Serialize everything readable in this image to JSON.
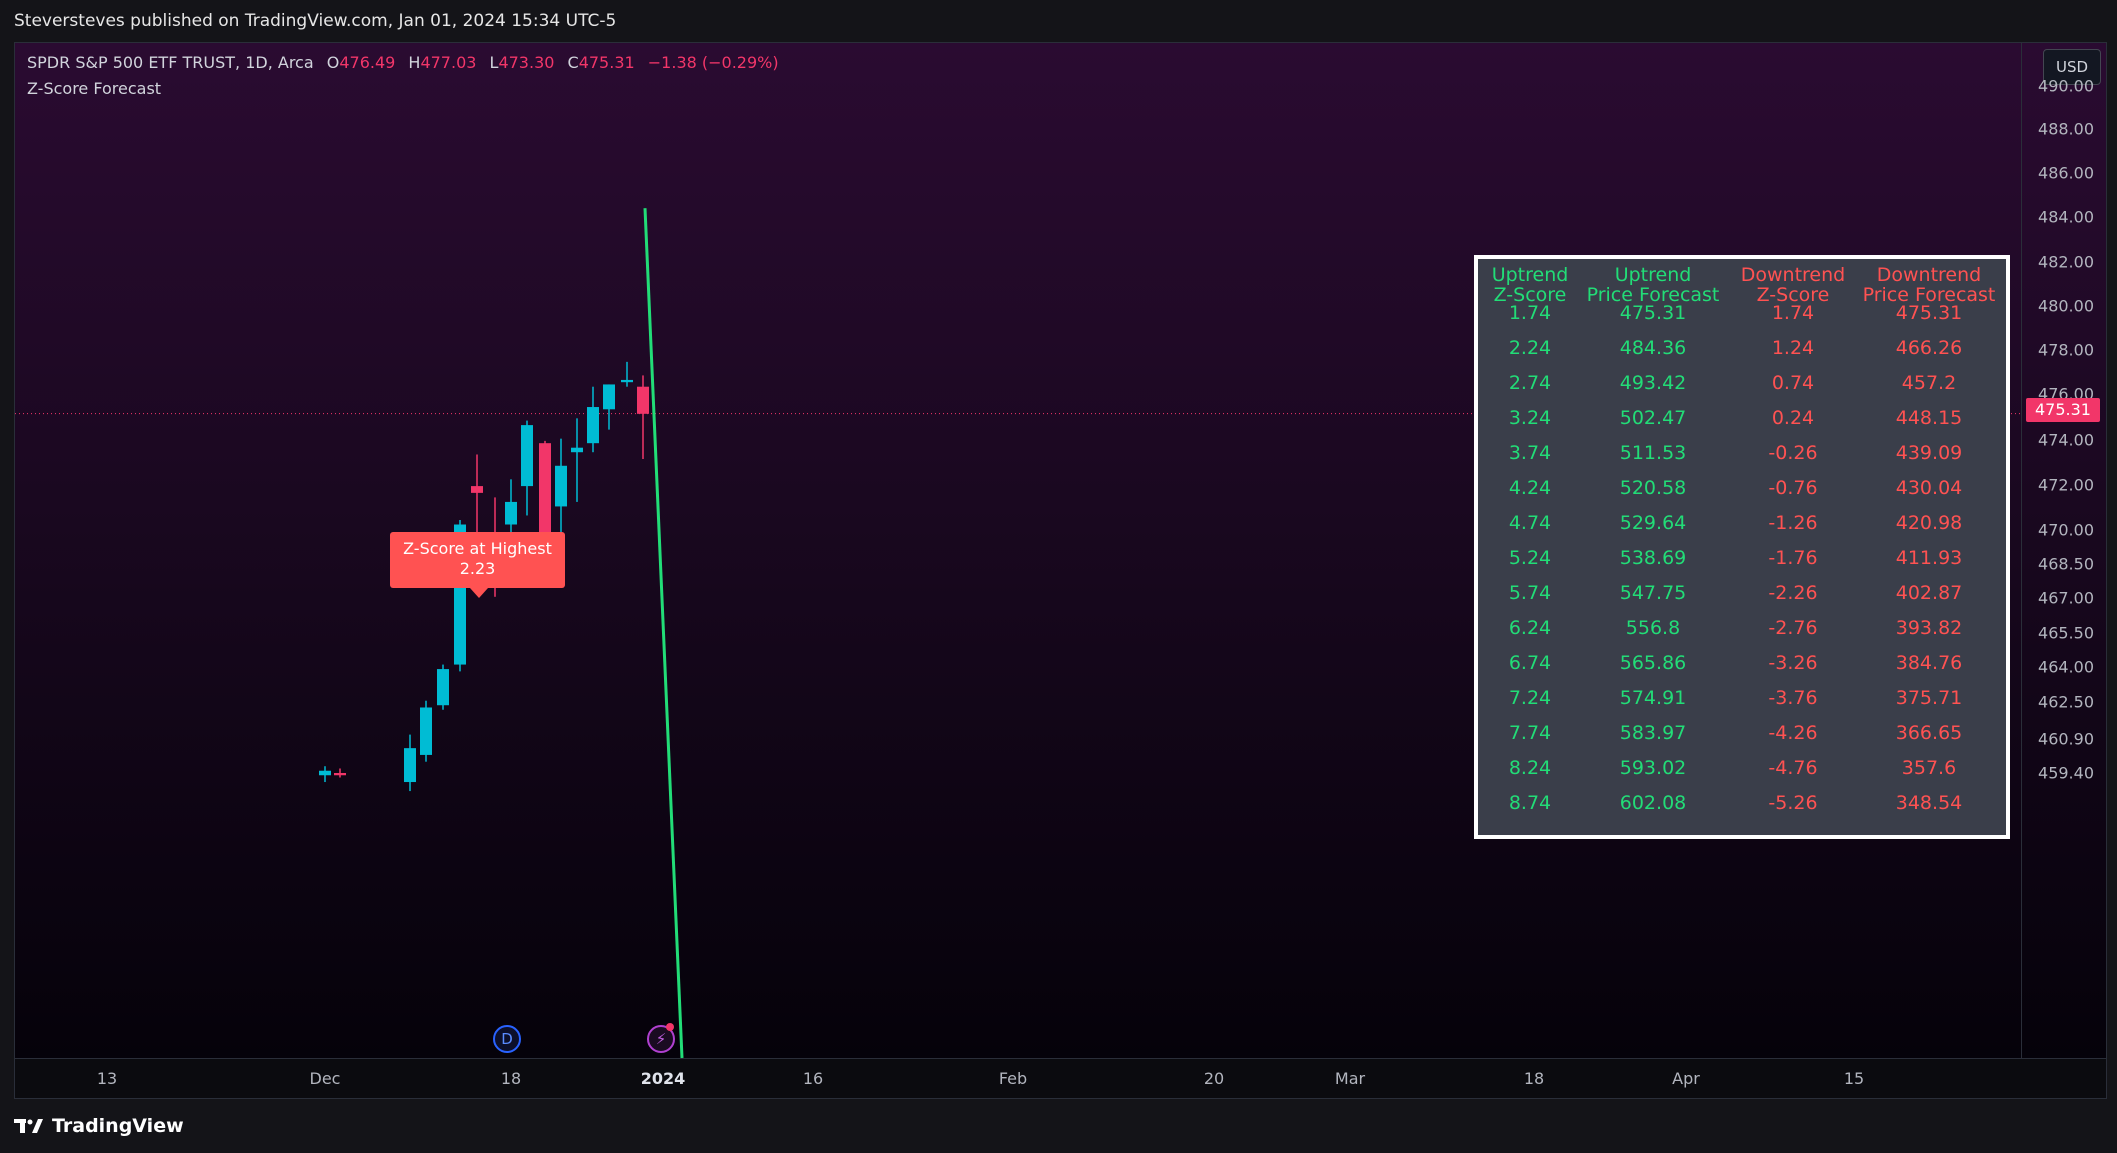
{
  "header": {
    "published_text": "Steversteves published on TradingView.com, Jan 01, 2024 15:34 UTC-5"
  },
  "symbol": {
    "name": "SPDR S&P 500 ETF TRUST, 1D, Arca",
    "open_label": "O",
    "open": "476.49",
    "high_label": "H",
    "high": "477.03",
    "low_label": "L",
    "low": "473.30",
    "close_label": "C",
    "close": "475.31",
    "change": "−1.38 (−0.29%)"
  },
  "indicator": {
    "name": "Z-Score Forecast"
  },
  "currency_button": "USD",
  "price_axis": {
    "ticks": [
      "490.00",
      "488.00",
      "486.00",
      "484.00",
      "482.00",
      "480.00",
      "478.00",
      "476.00",
      "474.00",
      "472.00",
      "470.00",
      "468.50",
      "467.00",
      "465.50",
      "464.00",
      "462.50",
      "460.90",
      "459.40"
    ],
    "current_price": "475.31"
  },
  "time_axis": {
    "ticks": [
      {
        "label": "13",
        "bold": false
      },
      {
        "label": "Dec",
        "bold": false
      },
      {
        "label": "18",
        "bold": false
      },
      {
        "label": "2024",
        "bold": true
      },
      {
        "label": "16",
        "bold": false
      },
      {
        "label": "Feb",
        "bold": false
      },
      {
        "label": "20",
        "bold": false
      },
      {
        "label": "Mar",
        "bold": false
      },
      {
        "label": "18",
        "bold": false
      },
      {
        "label": "Apr",
        "bold": false
      },
      {
        "label": "15",
        "bold": false
      }
    ]
  },
  "zscore_marker": {
    "line1": "Z-Score at Highest",
    "line2": "2.23"
  },
  "events": {
    "dividend": "D"
  },
  "forecast_table": {
    "headers": [
      {
        "l1": "Uptrend",
        "l2": "Z-Score",
        "color": "green"
      },
      {
        "l1": "Uptrend",
        "l2": "Price Forecast",
        "color": "green"
      },
      {
        "l1": "Downtrend",
        "l2": "Z-Score",
        "color": "red"
      },
      {
        "l1": "Downtrend",
        "l2": "Price Forecast",
        "color": "red"
      }
    ],
    "rows": [
      [
        "1.74",
        "475.31",
        "1.74",
        "475.31"
      ],
      [
        "2.24",
        "484.36",
        "1.24",
        "466.26"
      ],
      [
        "2.74",
        "493.42",
        "0.74",
        "457.2"
      ],
      [
        "3.24",
        "502.47",
        "0.24",
        "448.15"
      ],
      [
        "3.74",
        "511.53",
        "-0.26",
        "439.09"
      ],
      [
        "4.24",
        "520.58",
        "-0.76",
        "430.04"
      ],
      [
        "4.74",
        "529.64",
        "-1.26",
        "420.98"
      ],
      [
        "5.24",
        "538.69",
        "-1.76",
        "411.93"
      ],
      [
        "5.74",
        "547.75",
        "-2.26",
        "402.87"
      ],
      [
        "6.24",
        "556.8",
        "-2.76",
        "393.82"
      ],
      [
        "6.74",
        "565.86",
        "-3.26",
        "384.76"
      ],
      [
        "7.24",
        "574.91",
        "-3.76",
        "375.71"
      ],
      [
        "7.74",
        "583.97",
        "-4.26",
        "366.65"
      ],
      [
        "8.24",
        "593.02",
        "-4.76",
        "357.6"
      ],
      [
        "8.74",
        "602.08",
        "-5.26",
        "348.54"
      ]
    ]
  },
  "chart_data": {
    "type": "candlestick",
    "up_color": "#00bcd4",
    "down_color": "#f23669",
    "forecast_line_color": "#22dd77",
    "candles": [
      {
        "o": 459.3,
        "h": 459.7,
        "l": 459.0,
        "c": 459.5
      },
      {
        "o": 459.4,
        "h": 459.6,
        "l": 459.2,
        "c": 459.3
      },
      {
        "o": 459.0,
        "h": 461.1,
        "l": 458.6,
        "c": 460.5
      },
      {
        "o": 460.2,
        "h": 462.6,
        "l": 459.9,
        "c": 462.3
      },
      {
        "o": 462.4,
        "h": 464.2,
        "l": 462.2,
        "c": 464.0
      },
      {
        "o": 464.2,
        "h": 470.6,
        "l": 463.9,
        "c": 470.4
      },
      {
        "o": 472.1,
        "h": 473.5,
        "l": 469.8,
        "c": 471.8
      },
      {
        "o": 469.6,
        "h": 471.6,
        "l": 467.2,
        "c": 469.5
      },
      {
        "o": 470.4,
        "h": 472.4,
        "l": 469.9,
        "c": 471.4
      },
      {
        "o": 472.1,
        "h": 475.0,
        "l": 470.8,
        "c": 474.8
      },
      {
        "o": 474.0,
        "h": 474.1,
        "l": 467.9,
        "c": 468.3
      },
      {
        "o": 471.2,
        "h": 474.2,
        "l": 468.8,
        "c": 473.0
      },
      {
        "o": 473.6,
        "h": 475.1,
        "l": 471.4,
        "c": 473.8
      },
      {
        "o": 474.0,
        "h": 476.5,
        "l": 473.6,
        "c": 475.6
      },
      {
        "o": 475.5,
        "h": 476.6,
        "l": 474.6,
        "c": 476.6
      },
      {
        "o": 476.7,
        "h": 477.6,
        "l": 476.5,
        "c": 476.8
      },
      {
        "o": 476.5,
        "h": 477.0,
        "l": 473.3,
        "c": 475.3
      }
    ],
    "forecast_line": {
      "from_price": 484.4,
      "to_price": 459.0
    }
  }
}
